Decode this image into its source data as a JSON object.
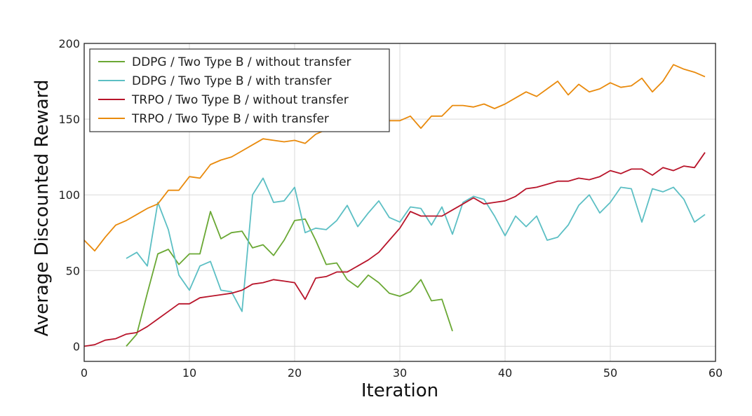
{
  "chart_data": {
    "type": "line",
    "title": "",
    "xlabel": "Iteration",
    "ylabel": "Average Discounted Reward",
    "xlim": [
      0,
      60
    ],
    "ylim": [
      -10,
      200
    ],
    "xticks": [
      0,
      10,
      20,
      30,
      40,
      50,
      60
    ],
    "yticks": [
      0,
      50,
      100,
      150,
      200
    ],
    "grid": true,
    "legend_position": "top-left",
    "series": [
      {
        "name": "DDPG / Two Type B  / without transfer",
        "color": "#6aa834",
        "x": [
          4,
          5,
          6,
          7,
          8,
          9,
          10,
          11,
          12,
          13,
          14,
          15,
          16,
          17,
          18,
          19,
          20,
          21,
          22,
          23,
          24,
          25,
          26,
          27,
          28,
          29,
          30,
          31,
          32,
          33,
          34,
          35
        ],
        "y": [
          0,
          8,
          35,
          61,
          64,
          54,
          61,
          61,
          89,
          71,
          75,
          76,
          65,
          67,
          60,
          70,
          83,
          84,
          70,
          54,
          55,
          44,
          39,
          47,
          42,
          35,
          33,
          36,
          44,
          30,
          31,
          10
        ]
      },
      {
        "name": "DDPG / Two Type B  / with transfer",
        "color": "#5cbfc4",
        "x": [
          4,
          5,
          6,
          7,
          8,
          9,
          10,
          11,
          12,
          13,
          14,
          15,
          16,
          17,
          18,
          19,
          20,
          21,
          22,
          23,
          24,
          25,
          26,
          27,
          28,
          29,
          30,
          31,
          32,
          33,
          34,
          35,
          36,
          37,
          38,
          39,
          40,
          41,
          42,
          43,
          44,
          45,
          46,
          47,
          48,
          49,
          50,
          51,
          52,
          53,
          54,
          55,
          56,
          57,
          58,
          59
        ],
        "y": [
          58,
          62,
          53,
          95,
          77,
          47,
          37,
          53,
          56,
          37,
          36,
          23,
          100,
          111,
          95,
          96,
          105,
          75,
          78,
          77,
          83,
          93,
          79,
          88,
          96,
          85,
          82,
          92,
          91,
          80,
          92,
          74,
          95,
          99,
          97,
          86,
          73,
          86,
          79,
          86,
          70,
          72,
          80,
          93,
          100,
          88,
          95,
          105,
          104,
          82,
          104,
          102,
          105,
          97,
          82,
          87
        ]
      },
      {
        "name": "TRPO / Two Type B  / without transfer",
        "color": "#b8142a",
        "x": [
          0,
          1,
          2,
          3,
          4,
          5,
          6,
          7,
          8,
          9,
          10,
          11,
          12,
          13,
          14,
          15,
          16,
          17,
          18,
          19,
          20,
          21,
          22,
          23,
          24,
          25,
          26,
          27,
          28,
          29,
          30,
          31,
          32,
          33,
          34,
          35,
          36,
          37,
          38,
          39,
          40,
          41,
          42,
          43,
          44,
          45,
          46,
          47,
          48,
          49,
          50,
          51,
          52,
          53,
          54,
          55,
          56,
          57,
          58,
          59
        ],
        "y": [
          0,
          1,
          4,
          5,
          8,
          9,
          13,
          18,
          23,
          28,
          28,
          32,
          33,
          34,
          35,
          37,
          41,
          42,
          44,
          43,
          42,
          31,
          45,
          46,
          49,
          49,
          53,
          57,
          62,
          70,
          78,
          89,
          86,
          86,
          86,
          90,
          94,
          98,
          94,
          95,
          96,
          99,
          104,
          105,
          107,
          109,
          109,
          111,
          110,
          112,
          116,
          114,
          117,
          117,
          113,
          118,
          116,
          119,
          118,
          128
        ]
      },
      {
        "name": "TRPO / Two Type B  / with transfer",
        "color": "#e98a0c",
        "x": [
          0,
          1,
          2,
          3,
          4,
          5,
          6,
          7,
          8,
          9,
          10,
          11,
          12,
          13,
          14,
          15,
          16,
          17,
          18,
          19,
          20,
          21,
          22,
          23,
          24,
          25,
          26,
          27,
          28,
          29,
          30,
          31,
          32,
          33,
          34,
          35,
          36,
          37,
          38,
          39,
          40,
          41,
          42,
          43,
          44,
          45,
          46,
          47,
          48,
          49,
          50,
          51,
          52,
          53,
          54,
          55,
          56,
          57,
          58,
          59
        ],
        "y": [
          70,
          63,
          72,
          80,
          83,
          87,
          91,
          94,
          103,
          103,
          112,
          111,
          120,
          123,
          125,
          129,
          133,
          137,
          136,
          135,
          136,
          134,
          140,
          143,
          146,
          149,
          148,
          150,
          150,
          149,
          149,
          152,
          144,
          152,
          152,
          159,
          159,
          158,
          160,
          157,
          160,
          164,
          168,
          165,
          170,
          175,
          166,
          173,
          168,
          170,
          174,
          171,
          172,
          177,
          168,
          175,
          186,
          183,
          181,
          178
        ]
      }
    ]
  }
}
